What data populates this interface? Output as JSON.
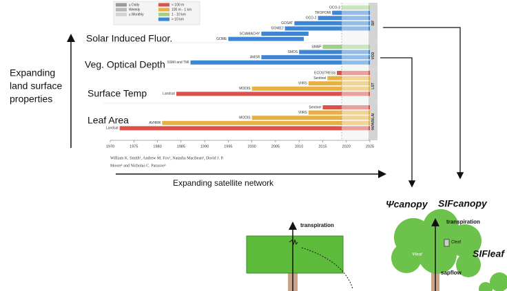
{
  "slide": {
    "side_label": [
      "Expanding",
      "land surface",
      "properties"
    ],
    "row_labels": [
      "Solar Induced Fluor.",
      "Veg. Optical Depth",
      "Surface Temp",
      "Leaf Area"
    ],
    "bottom_label": "Expanding satellite network"
  },
  "figure": {
    "legend": [
      {
        "label": "≥ Daily",
        "color": "#9a9a9a"
      },
      {
        "label": "Weekly",
        "color": "#b8b8b8"
      },
      {
        "label": "≤ Monthly",
        "color": "#d2d2d2"
      },
      {
        "label": "< 100 m",
        "color": "#d9534a"
      },
      {
        "label": "100 m - 1 km",
        "color": "#e8b040"
      },
      {
        "label": "1 - 10 km",
        "color": "#9fcf8a"
      },
      {
        "label": "> 10 km",
        "color": "#3d86d6"
      }
    ],
    "panels": [
      "SIF",
      "VOD",
      "LST",
      "fAPAR/LAI"
    ],
    "xlim": [
      1970,
      2025
    ],
    "xticks": [
      1970,
      1975,
      1980,
      1985,
      1990,
      1995,
      2000,
      2005,
      2010,
      2015,
      2020,
      2025
    ],
    "bars": [
      {
        "name": "OCO-3",
        "start": 2019,
        "end": 2025,
        "panel": 0,
        "color": "#9fcf8a"
      },
      {
        "name": "TROPOMI",
        "start": 2017,
        "end": 2025,
        "panel": 0,
        "color": "#3d86d6"
      },
      {
        "name": "OCO-2",
        "start": 2014,
        "end": 2025,
        "panel": 0,
        "color": "#3d86d6"
      },
      {
        "name": "GOSAT",
        "start": 2009,
        "end": 2025,
        "panel": 0,
        "color": "#3d86d6"
      },
      {
        "name": "GOME2",
        "start": 2007,
        "end": 2025,
        "panel": 0,
        "color": "#3d86d6"
      },
      {
        "name": "SCIAMACHY",
        "start": 2002,
        "end": 2012,
        "panel": 0,
        "color": "#3d86d6"
      },
      {
        "name": "GOME",
        "start": 1995,
        "end": 2011,
        "panel": 0,
        "color": "#3d86d6"
      },
      {
        "name": "SMAP",
        "start": 2015,
        "end": 2025,
        "panel": 1,
        "color": "#9fcf8a"
      },
      {
        "name": "SMOS",
        "start": 2010,
        "end": 2025,
        "panel": 1,
        "color": "#3d86d6"
      },
      {
        "name": "AMSR",
        "start": 2002,
        "end": 2025,
        "panel": 1,
        "color": "#3d86d6"
      },
      {
        "name": "SSMI and TMI",
        "start": 1987,
        "end": 2025,
        "panel": 1,
        "color": "#3d86d6"
      },
      {
        "name": "ECOSTRESS",
        "start": 2018,
        "end": 2025,
        "panel": 2,
        "color": "#d9534a"
      },
      {
        "name": "Sentinel",
        "start": 2016,
        "end": 2025,
        "panel": 2,
        "color": "#e8b040"
      },
      {
        "name": "VIIRS",
        "start": 2012,
        "end": 2025,
        "panel": 2,
        "color": "#e8b040"
      },
      {
        "name": "MODIS",
        "start": 2000,
        "end": 2025,
        "panel": 2,
        "color": "#e8b040"
      },
      {
        "name": "Landsat",
        "start": 1984,
        "end": 2025,
        "panel": 2,
        "color": "#d9534a"
      },
      {
        "name": "Sentinel",
        "start": 2015,
        "end": 2025,
        "panel": 3,
        "color": "#d9534a"
      },
      {
        "name": "VIIRS",
        "start": 2012,
        "end": 2025,
        "panel": 3,
        "color": "#e8b040"
      },
      {
        "name": "MODIS",
        "start": 2000,
        "end": 2025,
        "panel": 3,
        "color": "#e8b040"
      },
      {
        "name": "AVHRR",
        "start": 1981,
        "end": 2025,
        "panel": 3,
        "color": "#e8b040"
      },
      {
        "name": "Landsat",
        "start": 1972,
        "end": 2025,
        "panel": 3,
        "color": "#d9534a"
      }
    ],
    "authors": [
      "William K. Smith¹, Andrew M. Fox¹, Natasha MacBean², David J. P.",
      "Moore¹ and Nicholas C. Parazoo³"
    ]
  },
  "diagram": {
    "psi_canopy": "Ψcanopy",
    "sif_canopy": "SIFcanopy",
    "left_tree": {
      "transpiration": "transpiration"
    },
    "right_tree": {
      "transpiration": "transpiration",
      "psi_leaf": "Ψleaf",
      "c_leaf": "Cleaf",
      "sif_leaf": "SIFleaf",
      "sapflow": "sapflow"
    }
  }
}
